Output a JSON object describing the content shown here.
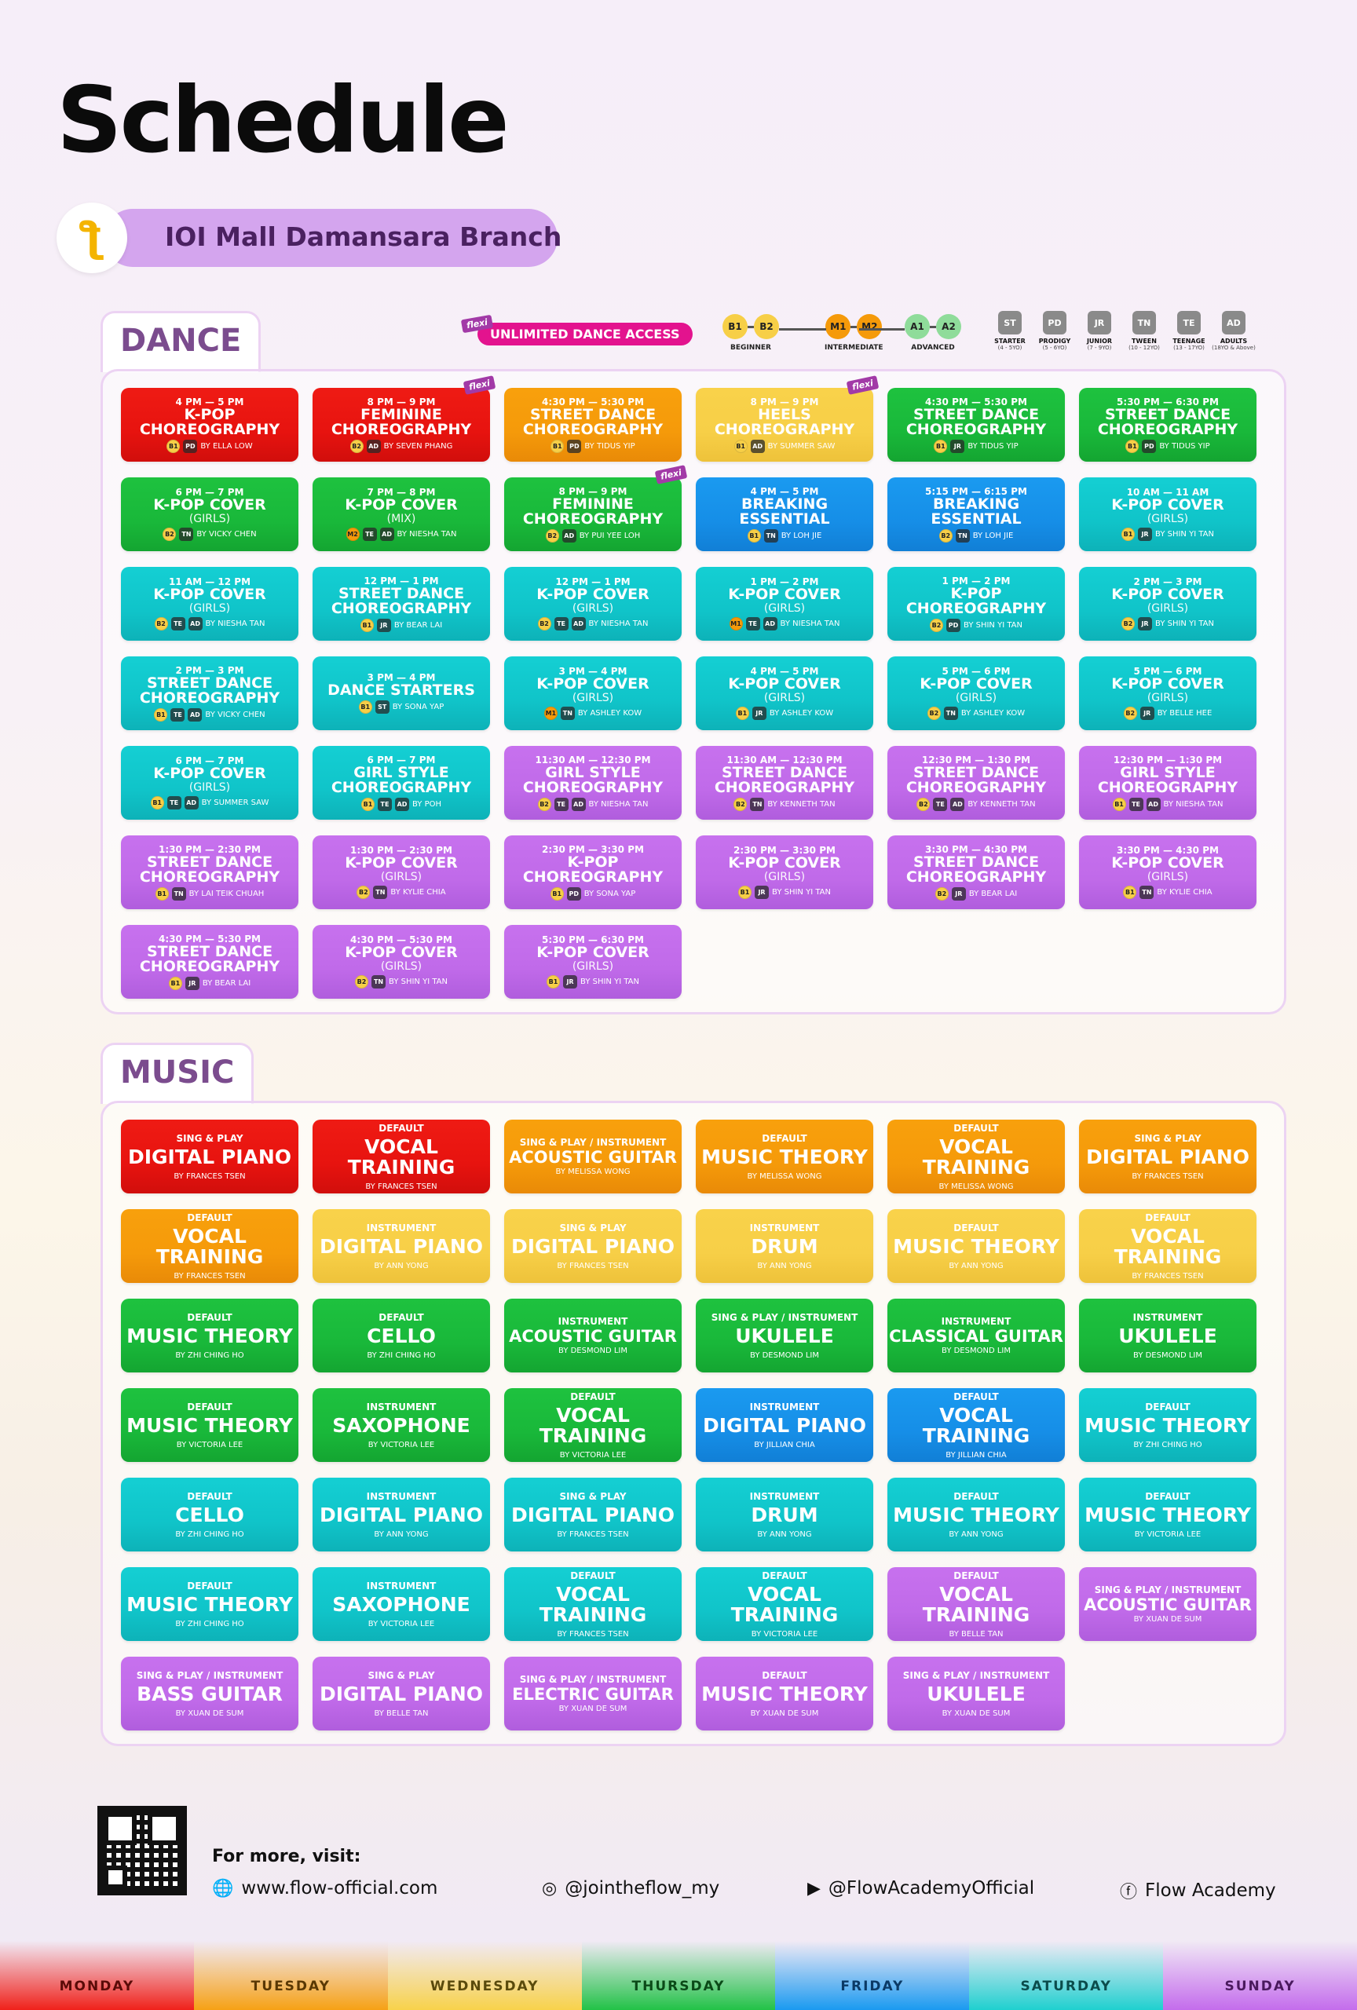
{
  "page_title": "Schedule",
  "branch": {
    "name": "IOI Mall Damansara Branch",
    "logo_glyph": "ƪ"
  },
  "dance": {
    "section_label": "DANCE",
    "unlimited": "UNLIMITED DANCE ACCESS",
    "flexi": "flexi",
    "levels": [
      {
        "codes": [
          "B1",
          "B2"
        ],
        "label": "BEGINNER",
        "color": "#f7cf47"
      },
      {
        "codes": [
          "M1",
          "M2"
        ],
        "label": "INTERMEDIATE",
        "color": "#f59a0a"
      },
      {
        "codes": [
          "A1",
          "A2"
        ],
        "label": "ADVANCED",
        "color": "#8fdc9a"
      }
    ],
    "ages": [
      {
        "code": "ST",
        "label": "STARTER",
        "range": "(4 - 5YO)"
      },
      {
        "code": "PD",
        "label": "PRODIGY",
        "range": "(5 - 6YO)"
      },
      {
        "code": "JR",
        "label": "JUNIOR",
        "range": "(7 - 9YO)"
      },
      {
        "code": "TN",
        "label": "TWEEN",
        "range": "(10 - 12YO)"
      },
      {
        "code": "TE",
        "label": "TEENAGE",
        "range": "(13 - 17YO)"
      },
      {
        "code": "AD",
        "label": "ADULTS",
        "range": "(18YO & Above)"
      }
    ],
    "classes": [
      {
        "time": "4 PM — 5 PM",
        "name": "K-POP",
        "name2": "CHOREOGRAPHY",
        "sub": "",
        "lvl": "B1",
        "age": "PD",
        "by": "BY ELLA LOW",
        "color": "red",
        "flexi": false
      },
      {
        "time": "8 PM — 9 PM",
        "name": "FEMININE",
        "name2": "CHOREOGRAPHY",
        "sub": "",
        "lvl": "B2",
        "age": "AD",
        "by": "BY SEVEN PHANG",
        "color": "red",
        "flexi": true
      },
      {
        "time": "4:30 PM — 5:30 PM",
        "name": "STREET DANCE",
        "name2": "CHOREOGRAPHY",
        "sub": "",
        "lvl": "B1",
        "age": "PD",
        "by": "BY TIDUS YIP",
        "color": "orange",
        "flexi": false
      },
      {
        "time": "8 PM — 9 PM",
        "name": "HEELS",
        "name2": "CHOREOGRAPHY",
        "sub": "",
        "lvl": "B1",
        "age": "AD",
        "by": "BY SUMMER SAW",
        "color": "yellow",
        "flexi": true
      },
      {
        "time": "4:30 PM — 5:30 PM",
        "name": "STREET DANCE",
        "name2": "CHOREOGRAPHY",
        "sub": "",
        "lvl": "B1",
        "age": "JR",
        "by": "BY TIDUS YIP",
        "color": "green",
        "flexi": false
      },
      {
        "time": "5:30 PM — 6:30 PM",
        "name": "STREET DANCE",
        "name2": "CHOREOGRAPHY",
        "sub": "",
        "lvl": "B1",
        "age": "PD",
        "by": "BY TIDUS YIP",
        "color": "green",
        "flexi": false
      },
      {
        "time": "6 PM — 7 PM",
        "name": "K-POP COVER",
        "name2": "",
        "sub": "(GIRLS)",
        "lvl": "B2",
        "age": "TN",
        "by": "BY VICKY CHEN",
        "color": "green",
        "flexi": false
      },
      {
        "time": "7 PM — 8 PM",
        "name": "K-POP COVER",
        "name2": "",
        "sub": "(MIX)",
        "lvl": "M2",
        "age": "TE",
        "age2": "AD",
        "by": "BY NIESHA TAN",
        "color": "green",
        "flexi": false
      },
      {
        "time": "8 PM — 9 PM",
        "name": "FEMININE",
        "name2": "CHOREOGRAPHY",
        "sub": "",
        "lvl": "B2",
        "age": "AD",
        "by": "BY PUI YEE LOH",
        "color": "green",
        "flexi": true
      },
      {
        "time": "4 PM — 5 PM",
        "name": "BREAKING",
        "name2": "ESSENTIAL",
        "sub": "",
        "lvl": "B1",
        "age": "TN",
        "by": "BY LOH JIE",
        "color": "blue",
        "flexi": false
      },
      {
        "time": "5:15 PM — 6:15 PM",
        "name": "BREAKING",
        "name2": "ESSENTIAL",
        "sub": "",
        "lvl": "B2",
        "age": "TN",
        "by": "BY LOH JIE",
        "color": "blue",
        "flexi": false
      },
      {
        "time": "10 AM — 11 AM",
        "name": "K-POP COVER",
        "name2": "",
        "sub": "(GIRLS)",
        "lvl": "B1",
        "age": "JR",
        "by": "BY SHIN YI TAN",
        "color": "teal",
        "flexi": false
      },
      {
        "time": "11 AM — 12 PM",
        "name": "K-POP COVER",
        "name2": "",
        "sub": "(GIRLS)",
        "lvl": "B2",
        "age": "TE",
        "age2": "AD",
        "by": "BY NIESHA TAN",
        "color": "teal",
        "flexi": false
      },
      {
        "time": "12 PM — 1 PM",
        "name": "STREET DANCE",
        "name2": "CHOREOGRAPHY",
        "sub": "",
        "lvl": "B1",
        "age": "JR",
        "by": "BY BEAR LAI",
        "color": "teal",
        "flexi": false
      },
      {
        "time": "12 PM — 1 PM",
        "name": "K-POP COVER",
        "name2": "",
        "sub": "(GIRLS)",
        "lvl": "B2",
        "age": "TE",
        "age2": "AD",
        "by": "BY NIESHA TAN",
        "color": "teal",
        "flexi": false
      },
      {
        "time": "1 PM — 2 PM",
        "name": "K-POP COVER",
        "name2": "",
        "sub": "(GIRLS)",
        "lvl": "M1",
        "age": "TE",
        "age2": "AD",
        "by": "BY NIESHA TAN",
        "color": "teal",
        "flexi": false
      },
      {
        "time": "1 PM — 2 PM",
        "name": "K-POP",
        "name2": "CHOREOGRAPHY",
        "sub": "",
        "lvl": "B2",
        "age": "PD",
        "by": "BY SHIN YI TAN",
        "color": "teal",
        "flexi": false
      },
      {
        "time": "2 PM — 3 PM",
        "name": "K-POP COVER",
        "name2": "",
        "sub": "(GIRLS)",
        "lvl": "B2",
        "age": "JR",
        "by": "BY SHIN YI TAN",
        "color": "teal",
        "flexi": false
      },
      {
        "time": "2 PM — 3 PM",
        "name": "STREET DANCE",
        "name2": "CHOREOGRAPHY",
        "sub": "",
        "lvl": "B1",
        "age": "TE",
        "age2": "AD",
        "by": "BY VICKY CHEN",
        "color": "teal",
        "flexi": false
      },
      {
        "time": "3 PM — 4 PM",
        "name": "DANCE STARTERS",
        "name2": "",
        "sub": "",
        "lvl": "B1",
        "age": "ST",
        "by": "BY SONA YAP",
        "color": "teal",
        "flexi": false
      },
      {
        "time": "3 PM — 4 PM",
        "name": "K-POP COVER",
        "name2": "",
        "sub": "(GIRLS)",
        "lvl": "M1",
        "age": "TN",
        "by": "BY ASHLEY KOW",
        "color": "teal",
        "flexi": false
      },
      {
        "time": "4 PM — 5 PM",
        "name": "K-POP COVER",
        "name2": "",
        "sub": "(GIRLS)",
        "lvl": "B1",
        "age": "JR",
        "by": "BY ASHLEY KOW",
        "color": "teal",
        "flexi": false
      },
      {
        "time": "5 PM — 6 PM",
        "name": "K-POP COVER",
        "name2": "",
        "sub": "(GIRLS)",
        "lvl": "B2",
        "age": "TN",
        "by": "BY ASHLEY KOW",
        "color": "teal",
        "flexi": false
      },
      {
        "time": "5 PM — 6 PM",
        "name": "K-POP COVER",
        "name2": "",
        "sub": "(GIRLS)",
        "lvl": "B2",
        "age": "JR",
        "by": "BY BELLE HEE",
        "color": "teal",
        "flexi": false
      },
      {
        "time": "6 PM — 7 PM",
        "name": "K-POP COVER",
        "name2": "",
        "sub": "(GIRLS)",
        "lvl": "B1",
        "age": "TE",
        "age2": "AD",
        "by": "BY SUMMER SAW",
        "color": "teal",
        "flexi": false
      },
      {
        "time": "6 PM — 7 PM",
        "name": "GIRL STYLE",
        "name2": "CHOREOGRAPHY",
        "sub": "",
        "lvl": "B1",
        "age": "TE",
        "age2": "AD",
        "by": "BY POH",
        "color": "teal",
        "flexi": false
      },
      {
        "time": "11:30 AM — 12:30 PM",
        "name": "GIRL STYLE",
        "name2": "CHOREOGRAPHY",
        "sub": "",
        "lvl": "B2",
        "age": "TE",
        "age2": "AD",
        "by": "BY NIESHA TAN",
        "color": "purple",
        "flexi": false
      },
      {
        "time": "11:30 AM — 12:30 PM",
        "name": "STREET DANCE",
        "name2": "CHOREOGRAPHY",
        "sub": "",
        "lvl": "B2",
        "age": "TN",
        "by": "BY KENNETH TAN",
        "color": "purple",
        "flexi": false
      },
      {
        "time": "12:30 PM — 1:30 PM",
        "name": "STREET DANCE",
        "name2": "CHOREOGRAPHY",
        "sub": "",
        "lvl": "B2",
        "age": "TE",
        "age2": "AD",
        "by": "BY KENNETH TAN",
        "color": "purple",
        "flexi": false
      },
      {
        "time": "12:30 PM — 1:30 PM",
        "name": "GIRL STYLE",
        "name2": "CHOREOGRAPHY",
        "sub": "",
        "lvl": "B1",
        "age": "TE",
        "age2": "AD",
        "by": "BY NIESHA TAN",
        "color": "purple",
        "flexi": false
      },
      {
        "time": "1:30 PM — 2:30 PM",
        "name": "STREET DANCE",
        "name2": "CHOREOGRAPHY",
        "sub": "",
        "lvl": "B1",
        "age": "TN",
        "by": "BY LAI TEIK CHUAH",
        "color": "purple",
        "flexi": false
      },
      {
        "time": "1:30 PM — 2:30 PM",
        "name": "K-POP COVER",
        "name2": "",
        "sub": "(GIRLS)",
        "lvl": "B2",
        "age": "TN",
        "by": "BY KYLIE CHIA",
        "color": "purple",
        "flexi": false
      },
      {
        "time": "2:30 PM — 3:30 PM",
        "name": "K-POP",
        "name2": "CHOREOGRAPHY",
        "sub": "",
        "lvl": "B1",
        "age": "PD",
        "by": "BY SONA YAP",
        "color": "purple",
        "flexi": false
      },
      {
        "time": "2:30 PM — 3:30 PM",
        "name": "K-POP COVER",
        "name2": "",
        "sub": "(GIRLS)",
        "lvl": "B1",
        "age": "JR",
        "by": "BY SHIN YI TAN",
        "color": "purple",
        "flexi": false
      },
      {
        "time": "3:30 PM — 4:30 PM",
        "name": "STREET DANCE",
        "name2": "CHOREOGRAPHY",
        "sub": "",
        "lvl": "B2",
        "age": "JR",
        "by": "BY BEAR LAI",
        "color": "purple",
        "flexi": false
      },
      {
        "time": "3:30 PM — 4:30 PM",
        "name": "K-POP COVER",
        "name2": "",
        "sub": "(GIRLS)",
        "lvl": "B1",
        "age": "TN",
        "by": "BY KYLIE CHIA",
        "color": "purple",
        "flexi": false
      },
      {
        "time": "4:30 PM — 5:30 PM",
        "name": "STREET DANCE",
        "name2": "CHOREOGRAPHY",
        "sub": "",
        "lvl": "B1",
        "age": "JR",
        "by": "BY BEAR LAI",
        "color": "purple",
        "flexi": false
      },
      {
        "time": "4:30 PM — 5:30 PM",
        "name": "K-POP COVER",
        "name2": "",
        "sub": "(GIRLS)",
        "lvl": "B2",
        "age": "TN",
        "by": "BY SHIN YI TAN",
        "color": "purple",
        "flexi": false
      },
      {
        "time": "5:30 PM — 6:30 PM",
        "name": "K-POP COVER",
        "name2": "",
        "sub": "(GIRLS)",
        "lvl": "B1",
        "age": "JR",
        "by": "BY SHIN YI TAN",
        "color": "purple",
        "flexi": false
      }
    ]
  },
  "music": {
    "section_label": "MUSIC",
    "classes": [
      {
        "cat": "SING & PLAY",
        "name": "DIGITAL PIANO",
        "by": "BY FRANCES TSEN",
        "color": "red"
      },
      {
        "cat": "DEFAULT",
        "name": "VOCAL TRAINING",
        "by": "BY FRANCES TSEN",
        "color": "red"
      },
      {
        "cat": "SING & PLAY / INSTRUMENT",
        "name": "ACOUSTIC GUITAR",
        "by": "BY MELISSA WONG",
        "color": "orange",
        "small": true
      },
      {
        "cat": "DEFAULT",
        "name": "MUSIC THEORY",
        "by": "BY MELISSA WONG",
        "color": "orange"
      },
      {
        "cat": "DEFAULT",
        "name": "VOCAL TRAINING",
        "by": "BY MELISSA WONG",
        "color": "orange"
      },
      {
        "cat": "SING & PLAY",
        "name": "DIGITAL PIANO",
        "by": "BY FRANCES TSEN",
        "color": "orange"
      },
      {
        "cat": "DEFAULT",
        "name": "VOCAL TRAINING",
        "by": "BY FRANCES TSEN",
        "color": "orange"
      },
      {
        "cat": "INSTRUMENT",
        "name": "DIGITAL PIANO",
        "by": "BY ANN YONG",
        "color": "yellow"
      },
      {
        "cat": "SING & PLAY",
        "name": "DIGITAL PIANO",
        "by": "BY FRANCES TSEN",
        "color": "yellow"
      },
      {
        "cat": "INSTRUMENT",
        "name": "DRUM",
        "by": "BY ANN YONG",
        "color": "yellow"
      },
      {
        "cat": "DEFAULT",
        "name": "MUSIC THEORY",
        "by": "BY ANN YONG",
        "color": "yellow"
      },
      {
        "cat": "DEFAULT",
        "name": "VOCAL TRAINING",
        "by": "BY FRANCES TSEN",
        "color": "yellow"
      },
      {
        "cat": "DEFAULT",
        "name": "MUSIC THEORY",
        "by": "BY ZHI CHING HO",
        "color": "green"
      },
      {
        "cat": "DEFAULT",
        "name": "CELLO",
        "by": "BY ZHI CHING HO",
        "color": "green"
      },
      {
        "cat": "INSTRUMENT",
        "name": "ACOUSTIC GUITAR",
        "by": "BY DESMOND LIM",
        "color": "green",
        "small": true
      },
      {
        "cat": "SING & PLAY / INSTRUMENT",
        "name": "UKULELE",
        "by": "BY DESMOND LIM",
        "color": "green"
      },
      {
        "cat": "INSTRUMENT",
        "name": "CLASSICAL GUITAR",
        "by": "BY DESMOND LIM",
        "color": "green",
        "small": true
      },
      {
        "cat": "INSTRUMENT",
        "name": "UKULELE",
        "by": "BY DESMOND LIM",
        "color": "green"
      },
      {
        "cat": "DEFAULT",
        "name": "MUSIC THEORY",
        "by": "BY VICTORIA LEE",
        "color": "green"
      },
      {
        "cat": "INSTRUMENT",
        "name": "SAXOPHONE",
        "by": "BY VICTORIA LEE",
        "color": "green"
      },
      {
        "cat": "DEFAULT",
        "name": "VOCAL TRAINING",
        "by": "BY VICTORIA LEE",
        "color": "green"
      },
      {
        "cat": "INSTRUMENT",
        "name": "DIGITAL PIANO",
        "by": "BY JILLIAN CHIA",
        "color": "blue"
      },
      {
        "cat": "DEFAULT",
        "name": "VOCAL TRAINING",
        "by": "BY JILLIAN CHIA",
        "color": "blue"
      },
      {
        "cat": "DEFAULT",
        "name": "MUSIC THEORY",
        "by": "BY ZHI CHING HO",
        "color": "teal"
      },
      {
        "cat": "DEFAULT",
        "name": "CELLO",
        "by": "BY ZHI CHING HO",
        "color": "teal"
      },
      {
        "cat": "INSTRUMENT",
        "name": "DIGITAL PIANO",
        "by": "BY ANN YONG",
        "color": "teal"
      },
      {
        "cat": "SING & PLAY",
        "name": "DIGITAL PIANO",
        "by": "BY FRANCES TSEN",
        "color": "teal"
      },
      {
        "cat": "INSTRUMENT",
        "name": "DRUM",
        "by": "BY ANN YONG",
        "color": "teal"
      },
      {
        "cat": "DEFAULT",
        "name": "MUSIC THEORY",
        "by": "BY ANN YONG",
        "color": "teal"
      },
      {
        "cat": "DEFAULT",
        "name": "MUSIC THEORY",
        "by": "BY VICTORIA LEE",
        "color": "teal"
      },
      {
        "cat": "DEFAULT",
        "name": "MUSIC THEORY",
        "by": "BY ZHI CHING HO",
        "color": "teal"
      },
      {
        "cat": "INSTRUMENT",
        "name": "SAXOPHONE",
        "by": "BY VICTORIA LEE",
        "color": "teal"
      },
      {
        "cat": "DEFAULT",
        "name": "VOCAL TRAINING",
        "by": "BY FRANCES TSEN",
        "color": "teal"
      },
      {
        "cat": "DEFAULT",
        "name": "VOCAL TRAINING",
        "by": "BY VICTORIA LEE",
        "color": "teal"
      },
      {
        "cat": "DEFAULT",
        "name": "VOCAL TRAINING",
        "by": "BY BELLE TAN",
        "color": "purple"
      },
      {
        "cat": "SING & PLAY / INSTRUMENT",
        "name": "ACOUSTIC GUITAR",
        "by": "BY XUAN DE SUM",
        "color": "purple",
        "small": true
      },
      {
        "cat": "SING & PLAY / INSTRUMENT",
        "name": "BASS GUITAR",
        "by": "BY XUAN DE SUM",
        "color": "purple"
      },
      {
        "cat": "SING & PLAY",
        "name": "DIGITAL PIANO",
        "by": "BY BELLE TAN",
        "color": "purple"
      },
      {
        "cat": "SING & PLAY / INSTRUMENT",
        "name": "ELECTRIC GUITAR",
        "by": "BY XUAN DE SUM",
        "color": "purple",
        "small": true
      },
      {
        "cat": "DEFAULT",
        "name": "MUSIC THEORY",
        "by": "BY XUAN DE SUM",
        "color": "purple"
      },
      {
        "cat": "SING & PLAY / INSTRUMENT",
        "name": "UKULELE",
        "by": "BY XUAN DE SUM",
        "color": "purple"
      }
    ]
  },
  "footer": {
    "visit_label": "For more, visit:",
    "website": "www.flow-official.com",
    "instagram": "@jointheflow_my",
    "youtube": "@FlowAcademyOfficial",
    "facebook": "Flow Academy"
  },
  "days": [
    {
      "label": "MONDAY",
      "bg": "#f0211a",
      "fg": "#5a0b08"
    },
    {
      "label": "TUESDAY",
      "bg": "#f6a114",
      "fg": "#5a3804"
    },
    {
      "label": "WEDNESDAY",
      "bg": "#f8d24a",
      "fg": "#5a4a0c"
    },
    {
      "label": "THURSDAY",
      "bg": "#22c247",
      "fg": "#0b4a18"
    },
    {
      "label": "FRIDAY",
      "bg": "#1a9af0",
      "fg": "#0b3a66"
    },
    {
      "label": "SATURDAY",
      "bg": "#1fd0cf",
      "fg": "#0b4c4c"
    },
    {
      "label": "SUNDAY",
      "bg": "#c46cec",
      "fg": "#4a1a5e"
    }
  ]
}
